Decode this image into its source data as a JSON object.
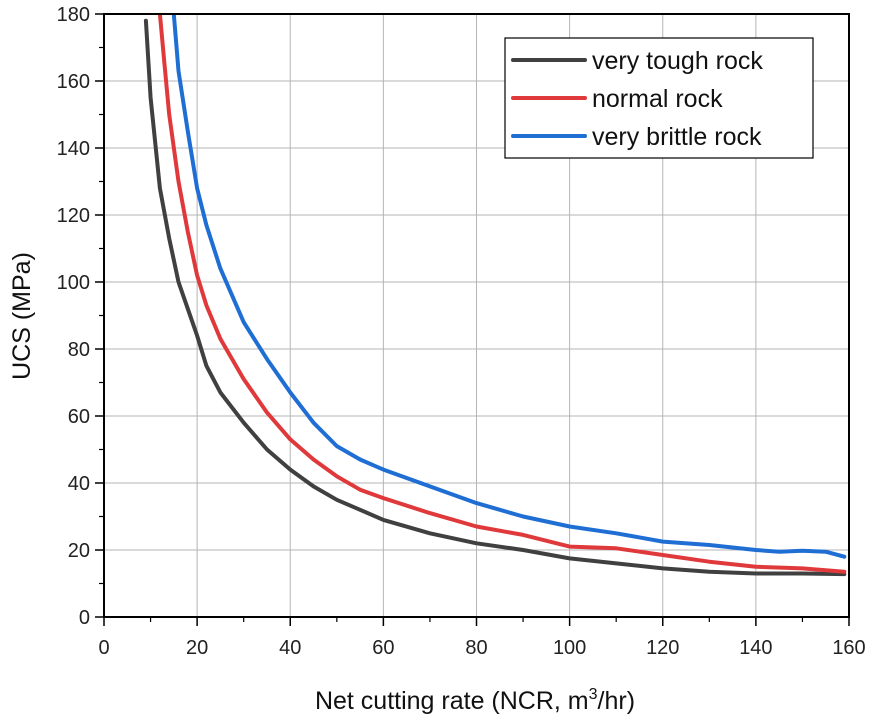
{
  "chart_data": {
    "type": "line",
    "title": "",
    "xlabel": "Net cutting rate (NCR, m",
    "xlabel_sup": "3",
    "xlabel_tail": "/hr)",
    "ylabel": "UCS (MPa)",
    "xlim": [
      0,
      160
    ],
    "ylim": [
      0,
      180
    ],
    "xticks": [
      0,
      20,
      40,
      60,
      80,
      100,
      120,
      140,
      160
    ],
    "yticks": [
      0,
      20,
      40,
      60,
      80,
      100,
      120,
      140,
      160,
      180
    ],
    "grid": true,
    "legend_position": "top-right",
    "series": [
      {
        "name": "very tough rock",
        "color": "#404040",
        "x": [
          9,
          10,
          12,
          14,
          16,
          18,
          20,
          22,
          25,
          30,
          35,
          40,
          45,
          50,
          55,
          60,
          70,
          80,
          90,
          100,
          110,
          120,
          130,
          140,
          150,
          159
        ],
        "y": [
          178,
          155,
          128,
          113,
          100,
          92,
          84,
          75,
          67,
          58,
          50,
          44,
          39,
          35,
          32,
          29,
          25,
          22,
          20,
          17.5,
          16,
          14.5,
          13.5,
          13,
          13,
          12.8
        ]
      },
      {
        "name": "normal rock",
        "color": "#e0393b",
        "x": [
          12,
          13,
          14,
          16,
          18,
          20,
          22,
          25,
          30,
          35,
          40,
          45,
          50,
          55,
          60,
          70,
          80,
          90,
          100,
          110,
          120,
          130,
          140,
          150,
          159
        ],
        "y": [
          180,
          165,
          150,
          130,
          115,
          102,
          93,
          83,
          71,
          61,
          53,
          47,
          42,
          38,
          35.5,
          31,
          27,
          24.5,
          21,
          20.5,
          18.5,
          16.5,
          15,
          14.5,
          13.5
        ]
      },
      {
        "name": "very brittle rock",
        "color": "#1f6ed4",
        "x": [
          15,
          16,
          18,
          20,
          22,
          25,
          30,
          35,
          40,
          45,
          50,
          55,
          60,
          70,
          80,
          90,
          100,
          110,
          120,
          130,
          140,
          145,
          150,
          155,
          159
        ],
        "y": [
          180,
          163,
          145,
          128,
          117,
          104,
          88,
          77,
          67,
          58,
          51,
          47,
          44,
          39,
          34,
          30,
          27,
          25,
          22.5,
          21.5,
          20,
          19.5,
          19.8,
          19.5,
          18
        ]
      }
    ]
  }
}
